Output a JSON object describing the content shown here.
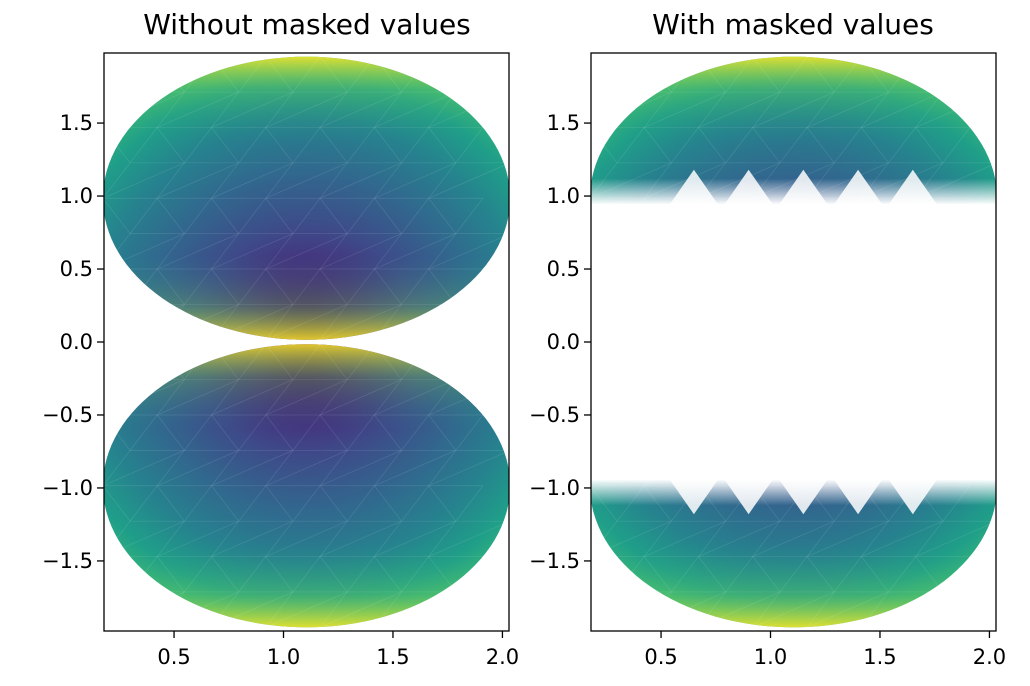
{
  "chart_data": [
    {
      "type": "heatmap",
      "subtype": "triangulation-gouraud",
      "title": "Without masked values",
      "xlim": [
        0.18,
        2.03
      ],
      "ylim": [
        -1.98,
        1.98
      ],
      "xticks": [
        0.5,
        1.0,
        1.5,
        2.0
      ],
      "xtick_labels": [
        "0.5",
        "1.0",
        "1.5",
        "2.0"
      ],
      "yticks": [
        1.5,
        1.0,
        0.5,
        0.0,
        -0.5,
        -1.0,
        -1.5
      ],
      "ytick_labels": [
        "1.5",
        "1.0",
        "0.5",
        "0.0",
        "−0.5",
        "−1.0",
        "−1.5"
      ],
      "colormap": "viridis",
      "shape": "two ellipses touching at (1.1, 0.0)",
      "masked_band": null
    },
    {
      "type": "heatmap",
      "subtype": "triangulation-gouraud",
      "title": "With masked values",
      "xlim": [
        0.18,
        2.03
      ],
      "ylim": [
        -1.98,
        1.98
      ],
      "xticks": [
        0.5,
        1.0,
        1.5,
        2.0
      ],
      "xtick_labels": [
        "0.5",
        "1.0",
        "1.5",
        "2.0"
      ],
      "yticks": [
        1.5,
        1.0,
        0.5,
        0.0,
        -0.5,
        -1.0,
        -1.5
      ],
      "ytick_labels": [
        "1.5",
        "1.0",
        "0.5",
        "0.0",
        "−0.5",
        "−1.0",
        "−1.5"
      ],
      "colormap": "viridis",
      "shape": "two ellipses, central band masked",
      "masked_band": [
        -1.0,
        1.0
      ]
    }
  ],
  "colors": {
    "viridis": [
      "#440154",
      "#482878",
      "#3e4a89",
      "#31688e",
      "#26828e",
      "#1f9e89",
      "#35b779",
      "#6ece58",
      "#b5de2b",
      "#fde725"
    ],
    "axes": "#000000",
    "background": "#ffffff"
  }
}
